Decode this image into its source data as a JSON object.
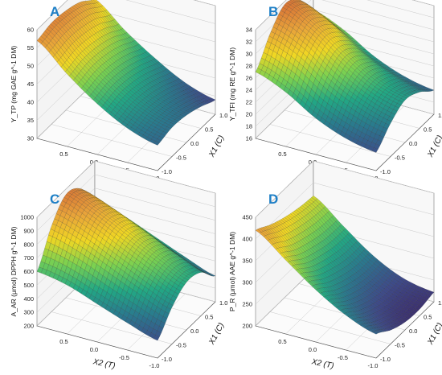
{
  "chart_data": [
    {
      "panel": "A",
      "type": "surface",
      "zlabel": "Y_TP (mg GAE g^-1 DM)",
      "x2_label": "X2 (T)",
      "x1_label": "X1 (C)",
      "zlim": [
        30,
        60
      ],
      "z_ticks": [
        30,
        35,
        40,
        45,
        50,
        55,
        60
      ],
      "x2_ticks": [
        "0.5",
        "0.0",
        "-0.5",
        "-1.0"
      ],
      "x1_ticks": [
        "-1.0",
        "-0.5",
        "0.0",
        "0.5",
        "1.0"
      ],
      "x2": [
        1.0,
        0.5,
        0.0,
        -0.5,
        -1.0
      ],
      "x1": [
        -1.0,
        -0.5,
        0.0,
        0.5,
        1.0
      ],
      "z": [
        [
          57,
          58,
          57.5,
          56,
          53
        ],
        [
          50,
          51,
          50.5,
          49,
          46.5
        ],
        [
          44,
          45,
          44.5,
          43,
          41
        ],
        [
          39.5,
          40.5,
          40,
          38.5,
          36.5
        ],
        [
          37,
          38,
          37.5,
          36,
          34
        ]
      ]
    },
    {
      "panel": "B",
      "type": "surface",
      "zlabel": "Y_TFI (mg RE g^-1 DM)",
      "x2_label": "X2 (T)",
      "x1_label": "X1 (C)",
      "zlim": [
        16,
        34
      ],
      "z_ticks": [
        16,
        18,
        20,
        22,
        24,
        26,
        28,
        30,
        32,
        34
      ],
      "x2_ticks": [
        "0.5",
        "0.0",
        "-0.5",
        "-1.0"
      ],
      "x1_ticks": [
        "-1.0",
        "-0.5",
        "0.0",
        "0.5",
        "1.0"
      ],
      "x2": [
        1.0,
        0.5,
        0.0,
        -0.5,
        -1.0
      ],
      "x1": [
        -1.0,
        -0.5,
        0.0,
        0.5,
        1.0
      ],
      "z": [
        [
          27,
          31,
          33.5,
          32,
          28
        ],
        [
          25,
          29,
          31,
          29.5,
          26
        ],
        [
          22,
          25.5,
          27.5,
          26,
          23
        ],
        [
          20,
          23,
          24.5,
          23.5,
          21
        ],
        [
          19,
          21.5,
          23,
          22,
          20
        ]
      ]
    },
    {
      "panel": "C",
      "type": "surface",
      "zlabel": "A_AR (μmol) DPPH g^-1 DM)",
      "x2_label": "X2 (T)",
      "x1_label": "X1 (C)",
      "zlim": [
        200,
        1000
      ],
      "z_ticks": [
        200,
        300,
        400,
        500,
        600,
        700,
        800,
        900,
        1000
      ],
      "x2_ticks": [
        "0.5",
        "0.0",
        "-0.5",
        "-1.0"
      ],
      "x1_ticks": [
        "-1.0",
        "-0.5",
        "0.0",
        "0.5",
        "1.0"
      ],
      "x2": [
        1.0,
        0.5,
        0.0,
        -0.5,
        -1.0
      ],
      "x1": [
        -1.0,
        -0.5,
        0.0,
        0.5,
        1.0
      ],
      "z": [
        [
          600,
          830,
          960,
          900,
          720
        ],
        [
          560,
          760,
          870,
          820,
          650
        ],
        [
          480,
          660,
          760,
          720,
          560
        ],
        [
          400,
          560,
          650,
          610,
          470
        ],
        [
          330,
          470,
          550,
          520,
          390
        ]
      ]
    },
    {
      "panel": "D",
      "type": "surface",
      "zlabel": "P_R (μmol) AAE g^-1 DM)",
      "x2_label": "X2 (T)",
      "x1_label": "X1 (C)",
      "zlim": [
        200,
        450
      ],
      "z_ticks": [
        200,
        250,
        300,
        350,
        400,
        450
      ],
      "x2_ticks": [
        "0.5",
        "0.0",
        "-0.5",
        "-1.0"
      ],
      "x1_ticks": [
        "-1.0",
        "-0.5",
        "0.0",
        "0.5",
        "1.0"
      ],
      "x2": [
        1.0,
        0.5,
        0.0,
        -0.5,
        -1.0
      ],
      "x1": [
        -1.0,
        -0.5,
        0.0,
        0.5,
        1.0
      ],
      "z": [
        [
          420,
          400,
          385,
          375,
          370
        ],
        [
          370,
          345,
          330,
          320,
          318
        ],
        [
          320,
          295,
          278,
          268,
          268
        ],
        [
          280,
          255,
          238,
          232,
          235
        ],
        [
          255,
          232,
          218,
          215,
          222
        ]
      ]
    }
  ],
  "colors": {
    "panel_letter": "#1e7fc6",
    "colormap": [
      "#3b1f5e",
      "#3e4a89",
      "#2a788e",
      "#22a884",
      "#7ad151",
      "#f0d723",
      "#e8a33a",
      "#d56a35"
    ]
  }
}
